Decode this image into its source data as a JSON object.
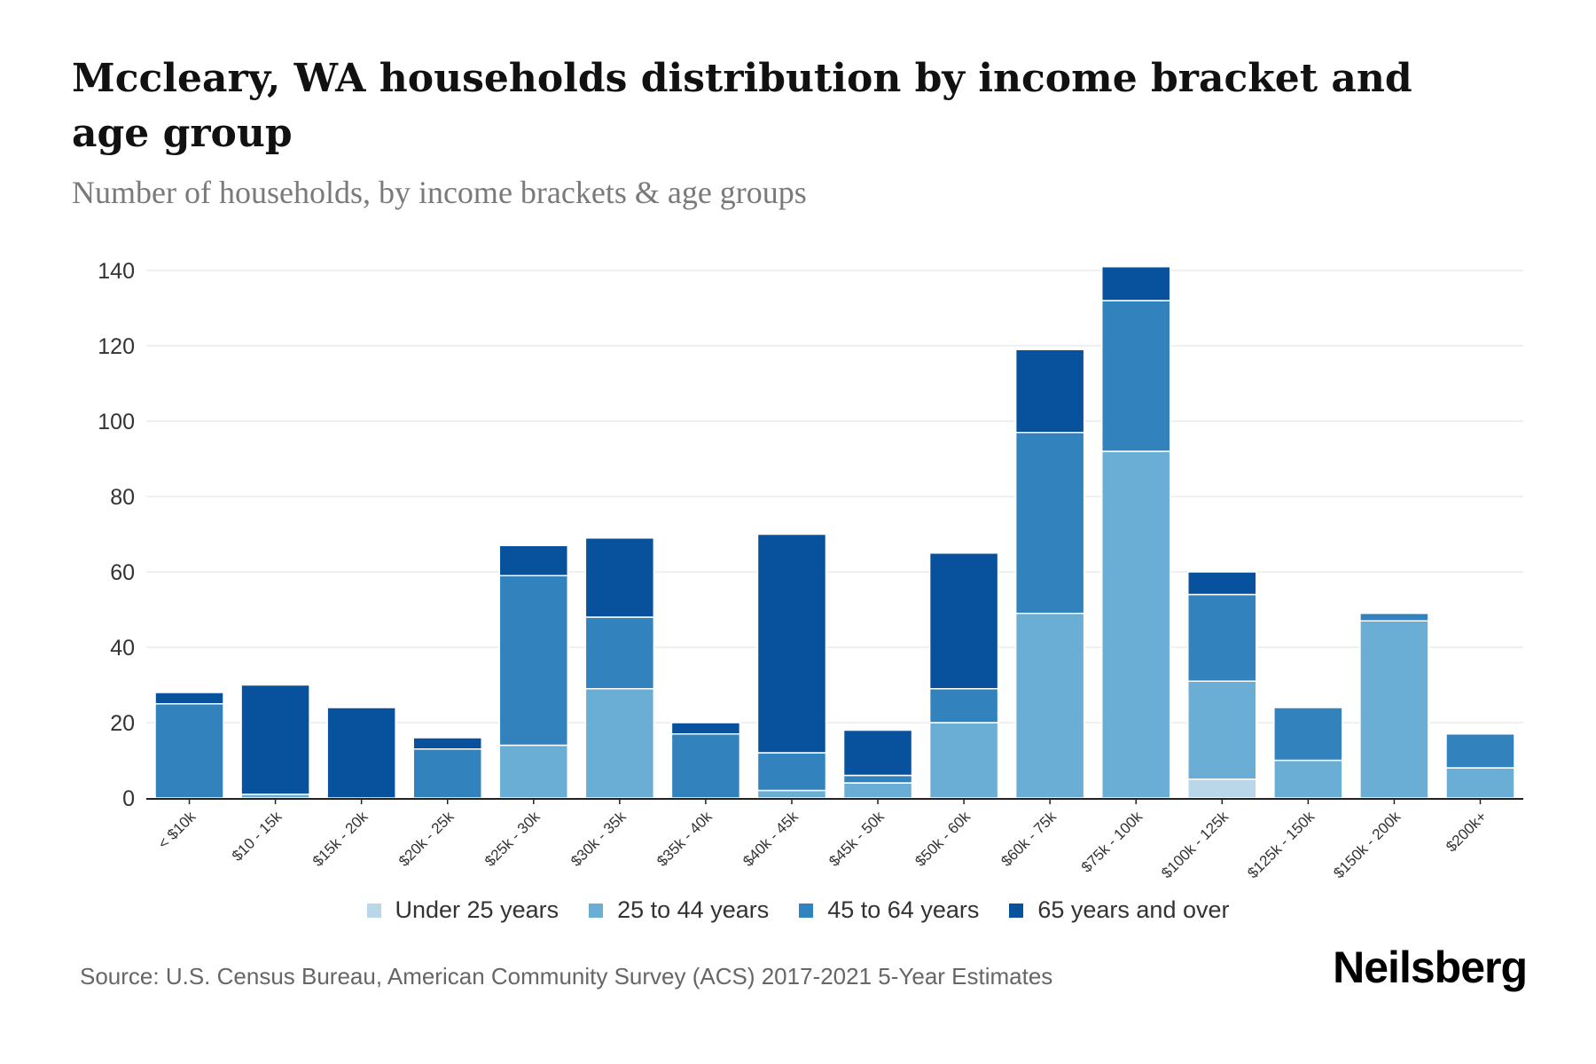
{
  "header": {
    "title": "Mccleary, WA households distribution by income bracket and age group",
    "subtitle": "Number of households, by income brackets & age groups"
  },
  "footer": {
    "source": "Source: U.S. Census Bureau, American Community Survey (ACS) 2017-2021 5-Year Estimates",
    "logo": "Neilsberg"
  },
  "legend": [
    {
      "label": "Under 25 years",
      "color": "#b9d7e8"
    },
    {
      "label": "25 to 44 years",
      "color": "#6aaed6"
    },
    {
      "label": "45 to 64 years",
      "color": "#3282bd"
    },
    {
      "label": "65 years and over",
      "color": "#08519c"
    }
  ],
  "chart_data": {
    "type": "bar",
    "stacked": true,
    "title": "Mccleary, WA households distribution by income bracket and age group",
    "subtitle": "Number of households, by income brackets & age groups",
    "xlabel": "",
    "ylabel": "",
    "ylim": [
      0,
      140
    ],
    "yticks": [
      0,
      20,
      40,
      60,
      80,
      100,
      120,
      140
    ],
    "grid": true,
    "legend_position": "bottom",
    "categories": [
      "< $10k",
      "$10 - 15k",
      "$15k - 20k",
      "$20k - 25k",
      "$25k - 30k",
      "$30k - 35k",
      "$35k - 40k",
      "$40k - 45k",
      "$45k - 50k",
      "$50k - 60k",
      "$60k - 75k",
      "$75k - 100k",
      "$100k - 125k",
      "$125k - 150k",
      "$150k - 200k",
      "$200k+"
    ],
    "series": [
      {
        "name": "Under 25 years",
        "color": "#b9d7e8",
        "values": [
          0,
          0,
          0,
          0,
          0,
          0,
          0,
          0,
          0,
          0,
          0,
          0,
          5,
          0,
          0,
          0
        ]
      },
      {
        "name": "25 to 44 years",
        "color": "#6aaed6",
        "values": [
          0,
          1,
          0,
          0,
          14,
          29,
          0,
          2,
          4,
          20,
          49,
          92,
          26,
          10,
          47,
          8
        ]
      },
      {
        "name": "45 to 64 years",
        "color": "#3282bd",
        "values": [
          25,
          0,
          0,
          13,
          45,
          19,
          17,
          10,
          2,
          9,
          48,
          40,
          23,
          14,
          2,
          9
        ]
      },
      {
        "name": "65 years and over",
        "color": "#08519c",
        "values": [
          3,
          29,
          24,
          3,
          8,
          21,
          3,
          58,
          12,
          36,
          22,
          9,
          6,
          0,
          0,
          0
        ]
      }
    ],
    "totals": [
      28,
      30,
      24,
      16,
      67,
      69,
      20,
      70,
      18,
      65,
      119,
      141,
      60,
      24,
      49,
      17
    ]
  }
}
